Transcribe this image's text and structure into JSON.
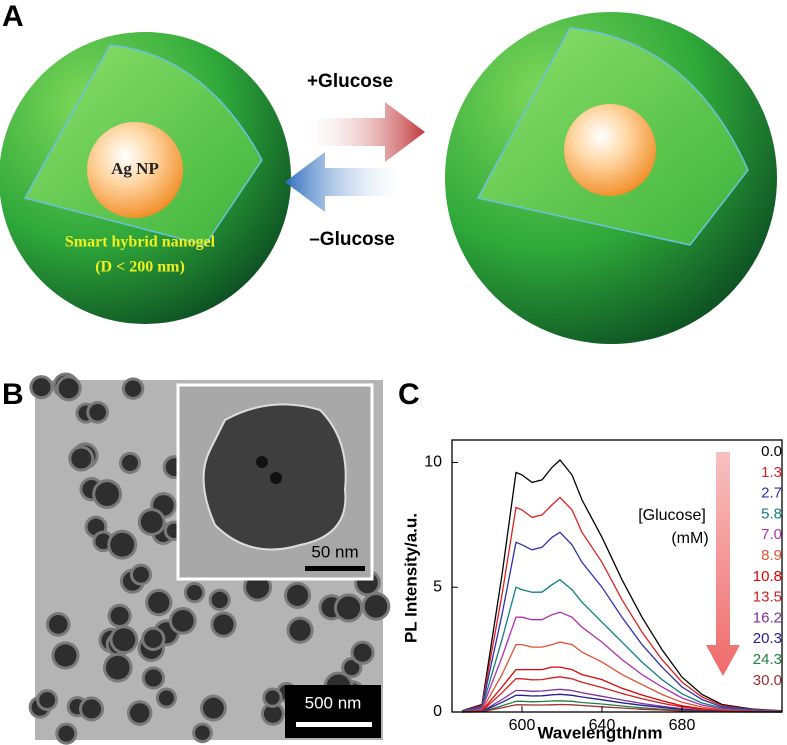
{
  "panel_a": {
    "label": "A",
    "top_arrow": "+Glucose",
    "bottom_arrow": "–Glucose",
    "core_label": "Ag NP",
    "shell_label": "Smart hybrid nanogel",
    "size_label": "(D < 200 nm)"
  },
  "panel_b": {
    "label": "B",
    "inset_scale": "50 nm",
    "main_scale": "500 nm"
  },
  "panel_c": {
    "label": "C"
  },
  "chart_data": {
    "type": "line",
    "x_label": "Wavelength/nm",
    "y_label": "PL Intensity/a.u.",
    "annotations": [
      "[Glucose]",
      "(mM)"
    ],
    "x": [
      570,
      580,
      590,
      597,
      600,
      605,
      610,
      615,
      619,
      625,
      630,
      640,
      650,
      660,
      670,
      680,
      690,
      700,
      715,
      730
    ],
    "xlim": [
      565,
      730
    ],
    "xticks": [
      600,
      640,
      680
    ],
    "ylim": [
      0,
      10.9
    ],
    "yticks": [
      0,
      5,
      10
    ],
    "series": [
      {
        "name": "0.0",
        "color": "#000000",
        "values": [
          0.05,
          0.3,
          5.5,
          9.6,
          9.5,
          9.2,
          9.3,
          9.8,
          10.1,
          9.5,
          8.5,
          7.0,
          5.3,
          3.8,
          2.5,
          1.4,
          0.7,
          0.3,
          0.12,
          0.05
        ]
      },
      {
        "name": "1.3",
        "color": "#e02020",
        "values": [
          0.04,
          0.26,
          4.7,
          8.2,
          8.1,
          7.8,
          7.9,
          8.3,
          8.6,
          8.1,
          7.2,
          6.0,
          4.5,
          3.2,
          2.1,
          1.2,
          0.6,
          0.26,
          0.1,
          0.04
        ]
      },
      {
        "name": "2.7",
        "color": "#3030b0",
        "values": [
          0.04,
          0.21,
          3.9,
          6.8,
          6.7,
          6.5,
          6.6,
          7.0,
          7.2,
          6.7,
          6.0,
          5.0,
          3.8,
          2.7,
          1.8,
          1.0,
          0.5,
          0.21,
          0.09,
          0.03
        ]
      },
      {
        "name": "5.8",
        "color": "#108080",
        "values": [
          0.03,
          0.16,
          2.9,
          5.0,
          4.9,
          4.8,
          4.8,
          5.1,
          5.3,
          4.9,
          4.4,
          3.6,
          2.8,
          2.0,
          1.3,
          0.73,
          0.36,
          0.16,
          0.07,
          0.03
        ]
      },
      {
        "name": "7.0",
        "color": "#b030b0",
        "values": [
          0.02,
          0.12,
          2.2,
          3.8,
          3.8,
          3.7,
          3.7,
          3.9,
          4.0,
          3.8,
          3.4,
          2.8,
          2.1,
          1.5,
          1.0,
          0.56,
          0.28,
          0.12,
          0.05,
          0.02
        ]
      },
      {
        "name": "8.9",
        "color": "#e05030",
        "values": [
          0.01,
          0.08,
          1.5,
          2.7,
          2.7,
          2.6,
          2.6,
          2.7,
          2.8,
          2.7,
          2.4,
          2.0,
          1.5,
          1.1,
          0.7,
          0.39,
          0.2,
          0.08,
          0.03,
          0.01
        ]
      },
      {
        "name": "10.8",
        "color": "#e00000",
        "values": [
          0.01,
          0.05,
          1.0,
          1.7,
          1.7,
          1.7,
          1.7,
          1.8,
          1.8,
          1.7,
          1.5,
          1.3,
          0.95,
          0.68,
          0.45,
          0.25,
          0.13,
          0.05,
          0.02,
          0.01
        ]
      },
      {
        "name": "13.5",
        "color": "#d02020",
        "values": [
          0.01,
          0.04,
          0.77,
          1.34,
          1.33,
          1.29,
          1.3,
          1.37,
          1.41,
          1.33,
          1.19,
          0.98,
          0.74,
          0.53,
          0.35,
          0.2,
          0.1,
          0.04,
          0.02,
          0.01
        ]
      },
      {
        "name": "16.2",
        "color": "#8030a0",
        "values": [
          0,
          0.03,
          0.5,
          0.86,
          0.86,
          0.83,
          0.84,
          0.88,
          0.91,
          0.86,
          0.77,
          0.63,
          0.48,
          0.34,
          0.23,
          0.13,
          0.06,
          0.03,
          0.01,
          0
        ]
      },
      {
        "name": "20.3",
        "color": "#202090",
        "values": [
          0,
          0.02,
          0.39,
          0.67,
          0.67,
          0.64,
          0.65,
          0.69,
          0.71,
          0.67,
          0.6,
          0.49,
          0.37,
          0.27,
          0.18,
          0.1,
          0.05,
          0.02,
          0.01,
          0
        ]
      },
      {
        "name": "24.3",
        "color": "#208040",
        "values": [
          0,
          0.01,
          0.25,
          0.43,
          0.43,
          0.41,
          0.42,
          0.44,
          0.45,
          0.43,
          0.38,
          0.32,
          0.24,
          0.17,
          0.11,
          0.06,
          0.03,
          0.01,
          0,
          0
        ]
      },
      {
        "name": "30.0",
        "color": "#a03030",
        "values": [
          0,
          0.01,
          0.17,
          0.29,
          0.29,
          0.28,
          0.28,
          0.29,
          0.3,
          0.29,
          0.26,
          0.21,
          0.16,
          0.11,
          0.08,
          0.04,
          0.02,
          0.01,
          0,
          0
        ]
      }
    ]
  }
}
